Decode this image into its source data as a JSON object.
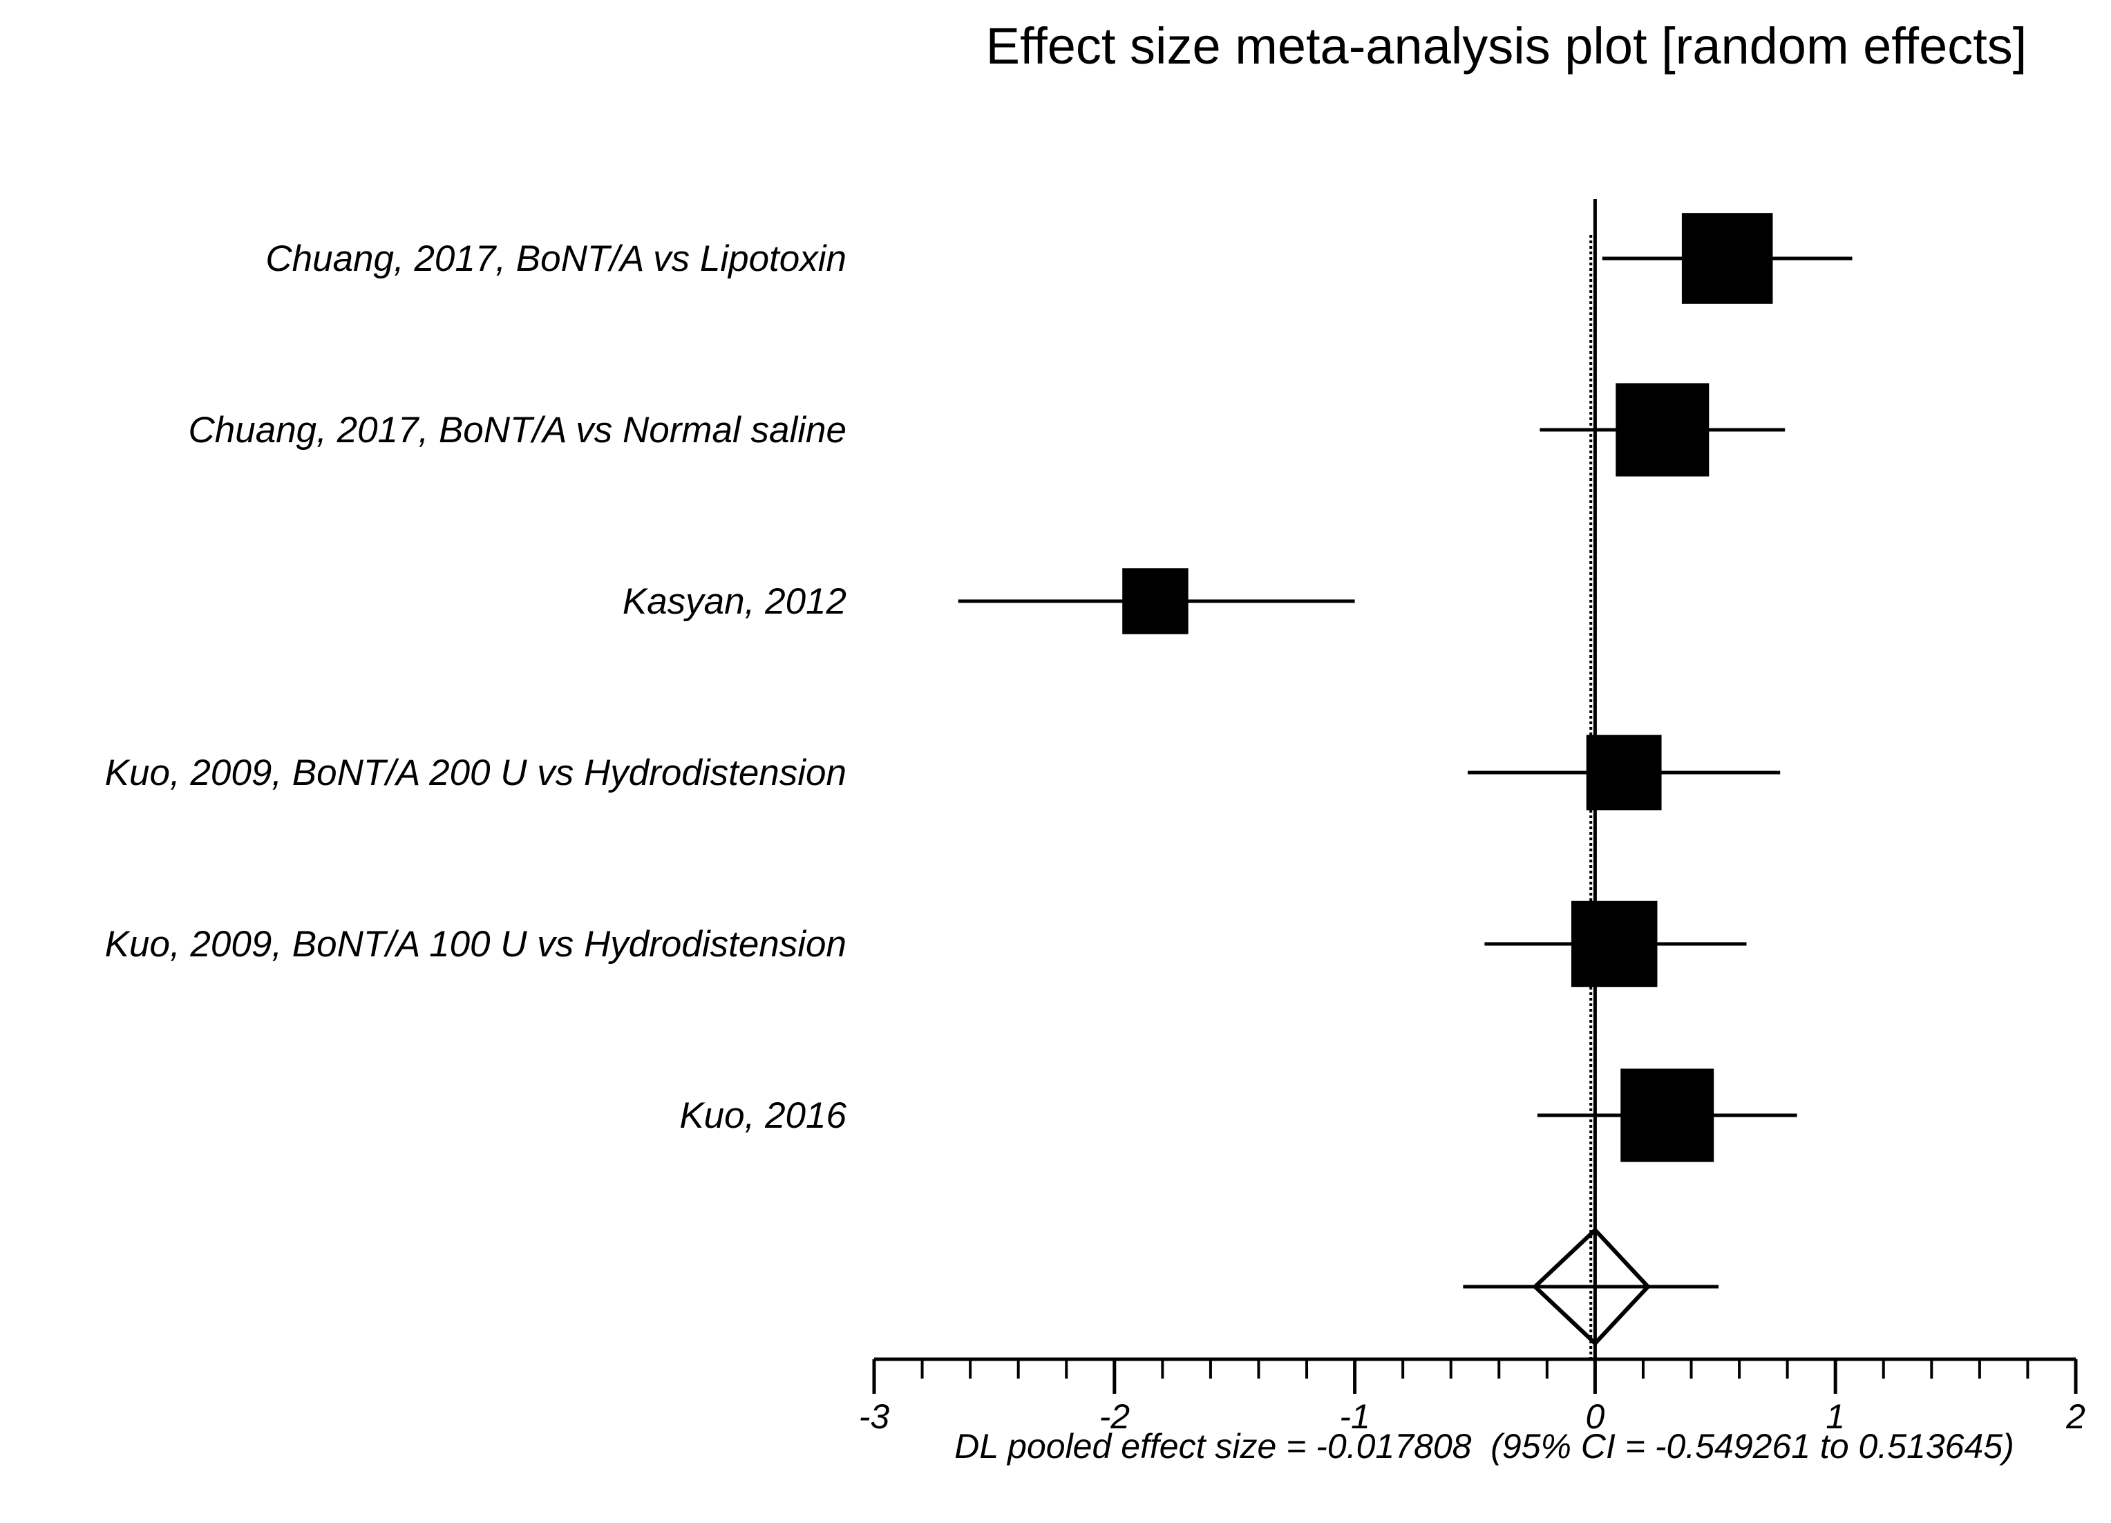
{
  "chart_data": {
    "type": "forest",
    "title": "Effect size meta-analysis plot [random effects]",
    "xlim": [
      -3,
      2
    ],
    "major_ticks": [
      -3,
      -2,
      -1,
      0,
      1,
      2
    ],
    "tick_labels": [
      "-3",
      "-2",
      "-1",
      "0",
      "1",
      "2"
    ],
    "minor_tick_step": 0.2,
    "reference_line": 0,
    "studies": [
      {
        "label": "Chuang, 2017, BoNT/A vs Lipotoxin",
        "effect": 0.55,
        "ci_low": 0.03,
        "ci_high": 1.07,
        "weight": 0.19
      },
      {
        "label": "Chuang, 2017, BoNT/A vs Normal saline",
        "effect": 0.28,
        "ci_low": -0.23,
        "ci_high": 0.79,
        "weight": 0.2
      },
      {
        "label": "Kasyan, 2012",
        "effect": -1.83,
        "ci_low": -2.65,
        "ci_high": -1.0,
        "weight": 0.1
      },
      {
        "label": "Kuo, 2009, BoNT/A 200 U vs Hydrodistension",
        "effect": 0.12,
        "ci_low": -0.53,
        "ci_high": 0.77,
        "weight": 0.13
      },
      {
        "label": "Kuo, 2009, BoNT/A 100 U vs Hydrodistension",
        "effect": 0.08,
        "ci_low": -0.46,
        "ci_high": 0.63,
        "weight": 0.17
      },
      {
        "label": "Kuo, 2016",
        "effect": 0.3,
        "ci_low": -0.24,
        "ci_high": 0.84,
        "weight": 0.2
      }
    ],
    "pooled": {
      "effect": -0.017808,
      "ci_low": -0.549261,
      "ci_high": 0.513645,
      "diamond_low": -0.25,
      "diamond_high": 0.22
    },
    "pooled_text": "DL pooled effect size = -0.017808  (95% CI = -0.549261 to 0.513645)"
  }
}
